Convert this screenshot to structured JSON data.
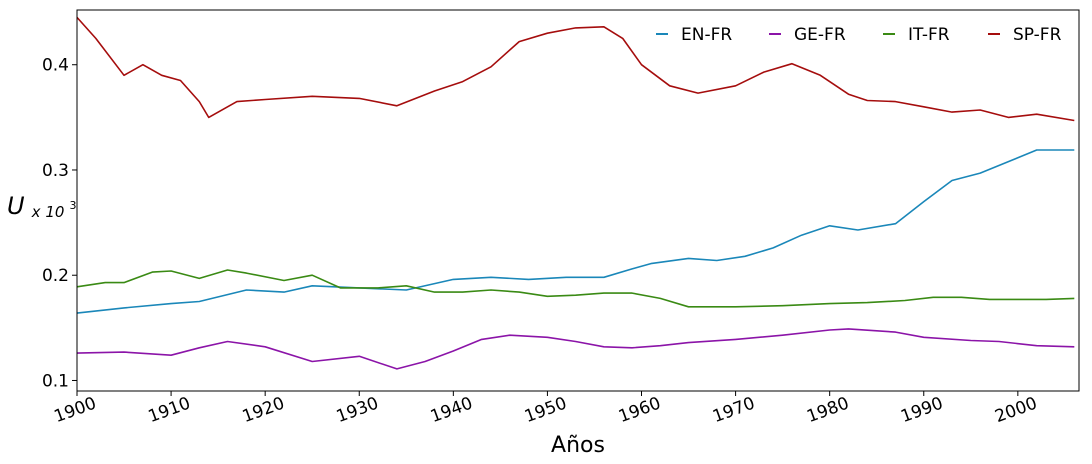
{
  "chart_data": {
    "type": "line",
    "xlabel": "Años",
    "ylabel_main": "U",
    "ylabel_sub": "x 10",
    "ylabel_sup": "3",
    "xlim": [
      1900,
      2006.5
    ],
    "ylim": [
      0.09,
      0.452
    ],
    "xticks": [
      1900,
      1910,
      1920,
      1930,
      1940,
      1950,
      1960,
      1970,
      1980,
      1990,
      2000
    ],
    "xtick_labels": [
      "1900",
      "1910",
      "1920",
      "1930",
      "1940",
      "1950",
      "1960",
      "1970",
      "1980",
      "1990",
      "2000"
    ],
    "yticks": [
      0.1,
      0.2,
      0.3,
      0.4
    ],
    "ytick_labels": [
      "0.1",
      "0.2",
      "0.3",
      "0.4"
    ],
    "legend_position": "top-right",
    "grid": false,
    "series": [
      {
        "name": "EN-FR",
        "color": "#1a87b9",
        "x": [
          1900,
          1905,
          1910,
          1913,
          1918,
          1922,
          1925,
          1930,
          1935,
          1940,
          1944,
          1948,
          1952,
          1956,
          1959,
          1961,
          1965,
          1968,
          1971,
          1974,
          1977,
          1980,
          1983,
          1987,
          1990,
          1993,
          1996,
          1999,
          2002,
          2006
        ],
        "y": [
          0.164,
          0.169,
          0.173,
          0.175,
          0.186,
          0.184,
          0.19,
          0.188,
          0.186,
          0.196,
          0.198,
          0.196,
          0.198,
          0.198,
          0.206,
          0.211,
          0.216,
          0.214,
          0.218,
          0.226,
          0.238,
          0.247,
          0.243,
          0.249,
          0.27,
          0.29,
          0.297,
          0.308,
          0.319,
          0.319
        ]
      },
      {
        "name": "GE-FR",
        "color": "#8b14a8",
        "x": [
          1900,
          1905,
          1910,
          1913,
          1916,
          1920,
          1925,
          1930,
          1934,
          1937,
          1940,
          1943,
          1946,
          1950,
          1953,
          1956,
          1959,
          1962,
          1965,
          1970,
          1975,
          1980,
          1982,
          1987,
          1990,
          1995,
          1998,
          2002,
          2006
        ],
        "y": [
          0.126,
          0.127,
          0.124,
          0.131,
          0.137,
          0.132,
          0.118,
          0.123,
          0.111,
          0.118,
          0.128,
          0.139,
          0.143,
          0.141,
          0.137,
          0.132,
          0.131,
          0.133,
          0.136,
          0.139,
          0.143,
          0.148,
          0.149,
          0.146,
          0.141,
          0.138,
          0.137,
          0.133,
          0.132
        ]
      },
      {
        "name": "IT-FR",
        "color": "#3a8a14",
        "x": [
          1900,
          1903,
          1905,
          1908,
          1910,
          1913,
          1916,
          1918,
          1922,
          1925,
          1928,
          1932,
          1935,
          1938,
          1941,
          1944,
          1947,
          1950,
          1953,
          1956,
          1959,
          1962,
          1965,
          1970,
          1975,
          1980,
          1984,
          1988,
          1991,
          1994,
          1997,
          2000,
          2003,
          2006
        ],
        "y": [
          0.189,
          0.193,
          0.193,
          0.203,
          0.204,
          0.197,
          0.205,
          0.202,
          0.195,
          0.2,
          0.188,
          0.188,
          0.19,
          0.184,
          0.184,
          0.186,
          0.184,
          0.18,
          0.181,
          0.183,
          0.183,
          0.178,
          0.17,
          0.17,
          0.171,
          0.173,
          0.174,
          0.176,
          0.179,
          0.179,
          0.177,
          0.177,
          0.177,
          0.178
        ]
      },
      {
        "name": "SP-FR",
        "color": "#a50d0d",
        "x": [
          1900,
          1902,
          1905,
          1907,
          1909,
          1911,
          1913,
          1914,
          1917,
          1920,
          1925,
          1930,
          1934,
          1938,
          1941,
          1944,
          1947,
          1950,
          1953,
          1956,
          1958,
          1960,
          1963,
          1966,
          1970,
          1973,
          1976,
          1979,
          1982,
          1984,
          1987,
          1990,
          1993,
          1996,
          1999,
          2002,
          2006
        ],
        "y": [
          0.445,
          0.425,
          0.39,
          0.4,
          0.39,
          0.385,
          0.365,
          0.35,
          0.365,
          0.367,
          0.37,
          0.368,
          0.361,
          0.375,
          0.384,
          0.398,
          0.422,
          0.43,
          0.435,
          0.436,
          0.425,
          0.4,
          0.38,
          0.373,
          0.38,
          0.393,
          0.401,
          0.39,
          0.372,
          0.366,
          0.365,
          0.36,
          0.355,
          0.357,
          0.35,
          0.353,
          0.347
        ]
      }
    ]
  }
}
